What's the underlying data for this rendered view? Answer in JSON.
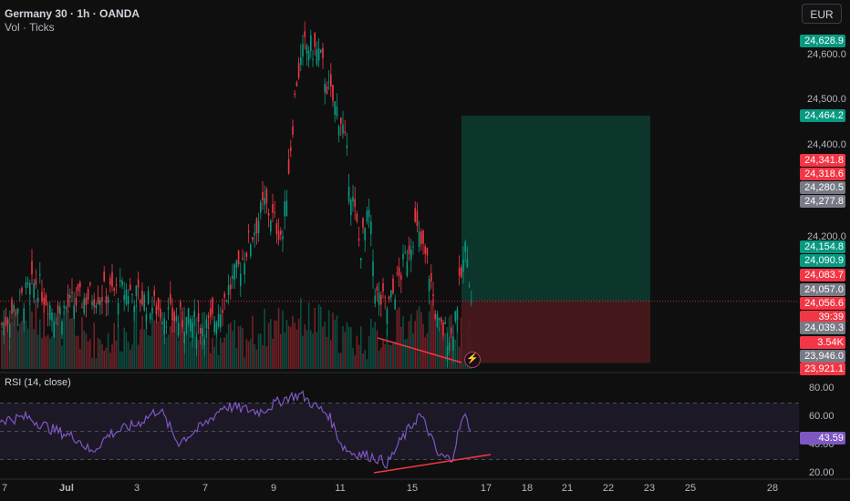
{
  "header": {
    "symbol_line": "Germany 30 · 1h · OANDA",
    "indicator_line": "Vol · Ticks"
  },
  "currency_button": "EUR",
  "price_axis": {
    "ticks": [
      "24,600.0",
      "24,500.0",
      "24,400.0",
      "24,200.0"
    ]
  },
  "price_tags": [
    {
      "value": "24,628.9",
      "color": "#089981"
    },
    {
      "value": "24,464.2",
      "color": "#089981"
    },
    {
      "value": "24,341.8",
      "color": "#f23645"
    },
    {
      "value": "24,318.6",
      "color": "#f23645"
    },
    {
      "value": "24,280.5",
      "color": "#787b86"
    },
    {
      "value": "24,277.8",
      "color": "#787b86"
    },
    {
      "value": "24,154.8",
      "color": "#089981"
    },
    {
      "value": "24,090.9",
      "color": "#089981"
    },
    {
      "value": "24,083.7",
      "color": "#f23645"
    },
    {
      "value": "24,057.0",
      "color": "#787b86"
    },
    {
      "value": "24,056.6",
      "color": "#f23645"
    },
    {
      "value": "39:39",
      "color": "#f23645"
    },
    {
      "value": "24,039.3",
      "color": "#787b86"
    },
    {
      "value": "3.54K",
      "color": "#f23645"
    },
    {
      "value": "23,946.0",
      "color": "#787b86"
    },
    {
      "value": "23,921.1",
      "color": "#f23645"
    }
  ],
  "rsi": {
    "title": "RSI (14, close)",
    "ticks": [
      "80.00",
      "60.00",
      "40.00",
      "20.00"
    ],
    "current_value": "43.59",
    "current_color": "#7e57c2"
  },
  "x_axis": {
    "labels": [
      "7",
      "Jul",
      "3",
      "7",
      "9",
      "11",
      "15",
      "17",
      "18",
      "21",
      "22",
      "23",
      "25",
      "28"
    ]
  },
  "position_tool": {
    "target_price": 24464.2,
    "entry_price": 24056.6,
    "stop_price": 23921.1,
    "profit_color": "#0c3b30",
    "loss_color": "#4a1a1c"
  },
  "colors": {
    "up": "#089981",
    "down": "#f23645",
    "rsi_line": "#7e57c2",
    "trendline": "#f23645"
  },
  "icons": [
    "lightning-alert-icon"
  ]
}
